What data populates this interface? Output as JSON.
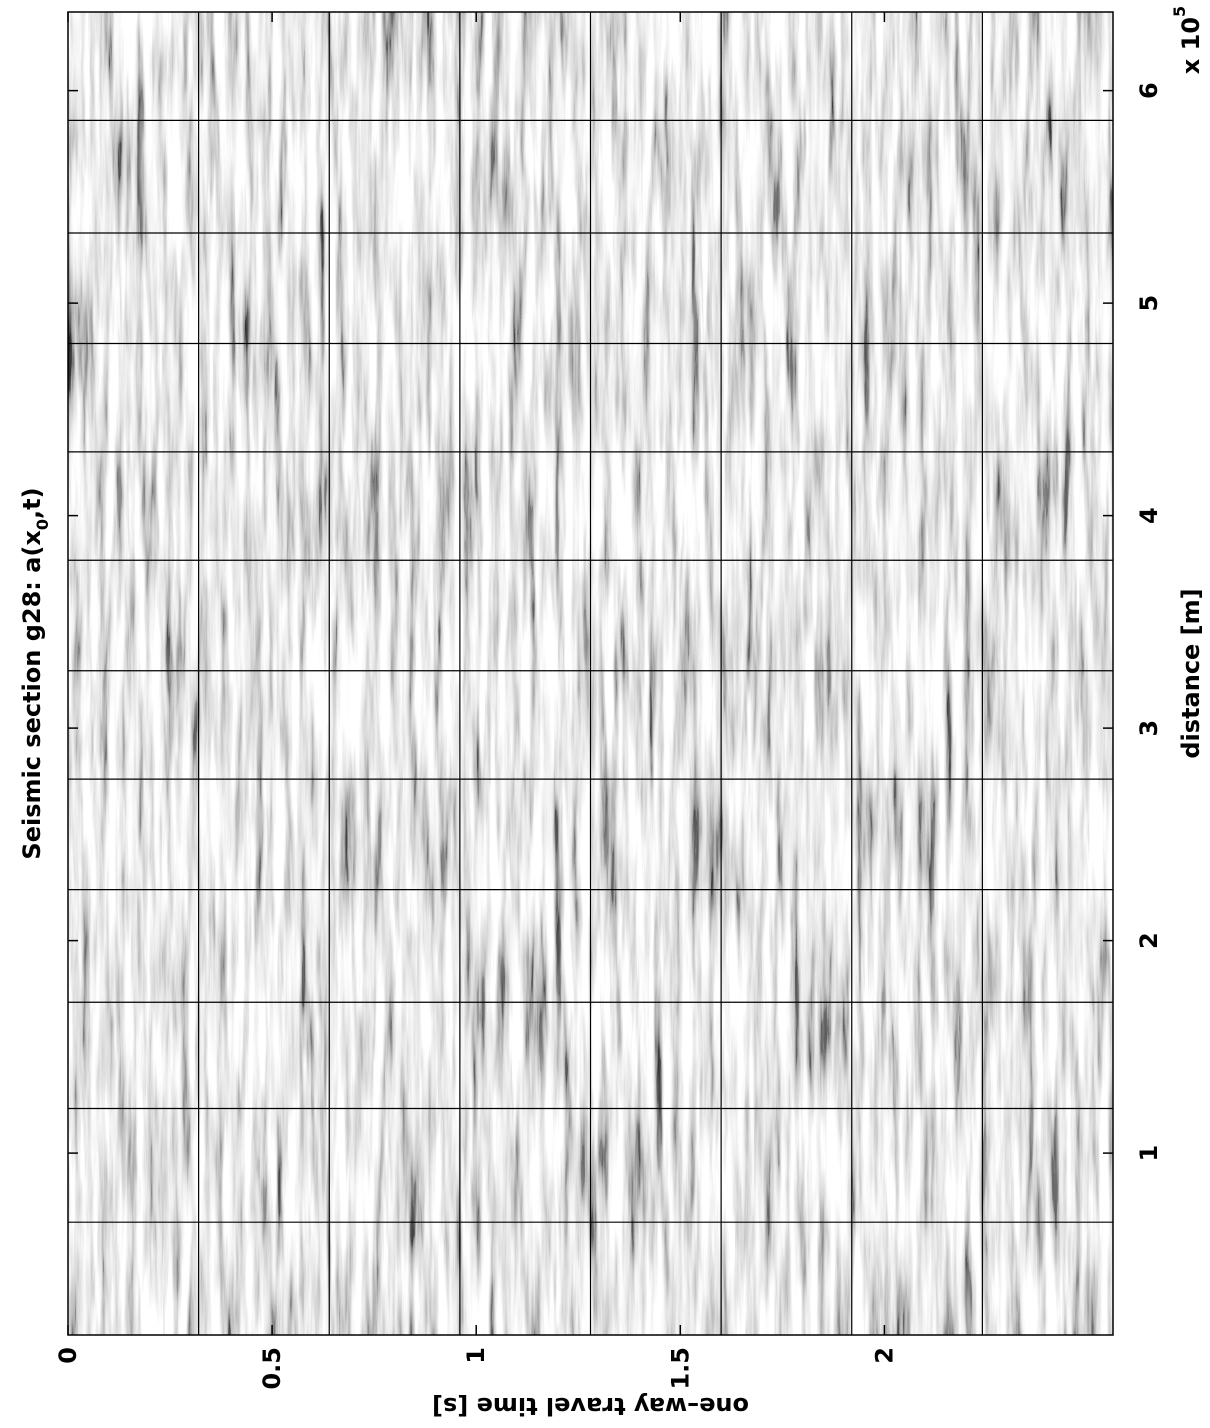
{
  "chart_data": {
    "type": "image",
    "title": "Seismic section g28: a(x",
    "title_subscript": "0",
    "title_end": ",t)",
    "xlabel": "distance [m]",
    "ylabel": "one–way travel time [s]",
    "x_multiplier": "x 10",
    "x_multiplier_exponent": "5",
    "xlim": [
      14400,
      637000
    ],
    "xticks": [
      {
        "value": 100000,
        "label": "1"
      },
      {
        "value": 200000,
        "label": "2"
      },
      {
        "value": 300000,
        "label": "3"
      },
      {
        "value": 400000,
        "label": "4"
      },
      {
        "value": 500000,
        "label": "5"
      },
      {
        "value": 600000,
        "label": "6"
      }
    ],
    "ylim": [
      0,
      2.56
    ],
    "y_inverted": true,
    "yticks": [
      0,
      0.5,
      1,
      1.5,
      2
    ],
    "grid_x": [
      67500,
      121000,
      171000,
      224000,
      276000,
      327000,
      379000,
      430000,
      481000,
      533000,
      586000
    ],
    "grid_y": [
      0.32,
      0.64,
      0.96,
      1.28,
      1.6,
      1.92,
      2.24
    ],
    "rotation": -90,
    "colormap": "gray"
  }
}
